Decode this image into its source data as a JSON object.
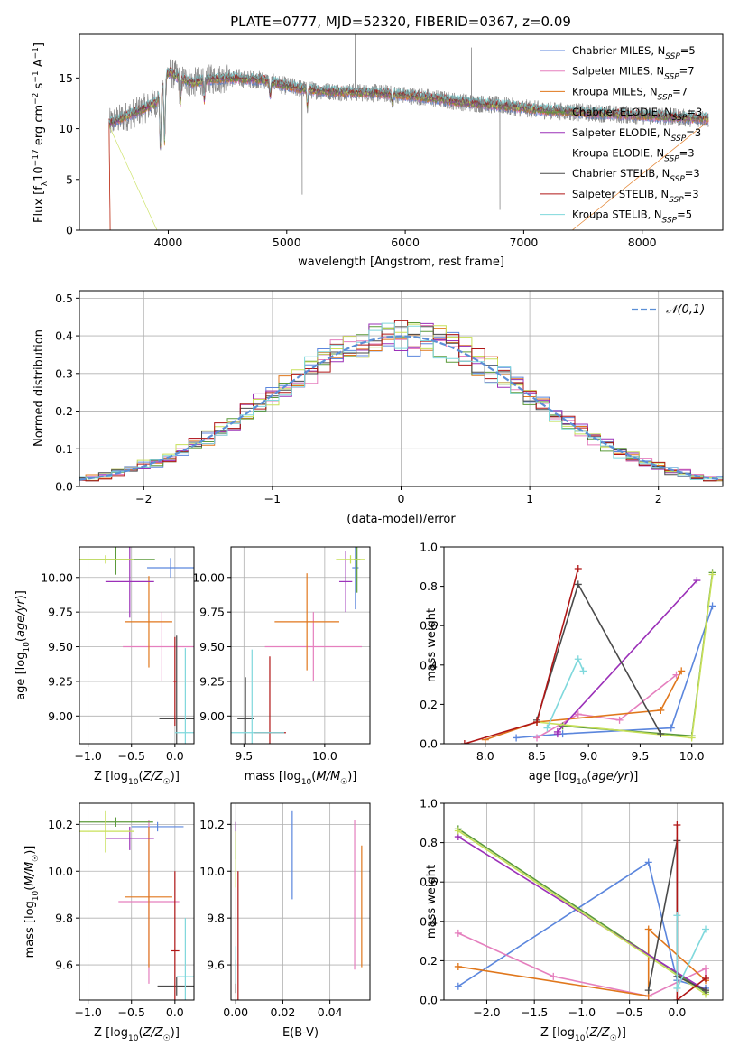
{
  "title": "PLATE=0777, MJD=52320, FIBERID=0367, z=0.09",
  "colors": {
    "Chabrier MILES": "#5b86dd",
    "Salpeter MILES": "#e57fbe",
    "Kroupa MILES": "#e0771c",
    "Chabrier ELODIE": "#5b9a3a",
    "Salpeter ELODIE": "#9b30b8",
    "Kroupa ELODIE": "#c8e05a",
    "Chabrier STELIB": "#4a4a4a",
    "Salpeter STELIB": "#b01616",
    "Kroupa STELIB": "#7fd8dc"
  },
  "chart_data": [
    {
      "id": "spectrum",
      "type": "line",
      "title": "PLATE=0777, MJD=52320, FIBERID=0367, z=0.09",
      "xlabel": "wavelength [Angstrom, rest frame]",
      "ylabel": "Flux [f_λ 10^-17 erg cm^-2 s^-1 A^-1]",
      "xlim": [
        3250,
        8680
      ],
      "ylim": [
        0,
        19.3
      ],
      "xticks": [
        4000,
        5000,
        6000,
        7000,
        8000
      ],
      "yticks": [
        0,
        5,
        10,
        15
      ],
      "legend": "top-right",
      "legend_entries": [
        {
          "series": "Chabrier MILES",
          "text": "Chabrier MILES, N",
          "sub": "SSP",
          "tail": "=5"
        },
        {
          "series": "Salpeter MILES",
          "text": "Salpeter MILES, N",
          "sub": "SSP",
          "tail": "=7"
        },
        {
          "series": "Kroupa MILES",
          "text": "Kroupa MILES, N",
          "sub": "SSP",
          "tail": "=7"
        },
        {
          "series": "Chabrier ELODIE",
          "text": "Chabrier ELODIE, N",
          "sub": "SSP",
          "tail": "=3"
        },
        {
          "series": "Salpeter ELODIE",
          "text": "Salpeter ELODIE, N",
          "sub": "SSP",
          "tail": "=3"
        },
        {
          "series": "Kroupa ELODIE",
          "text": "Kroupa ELODIE, N",
          "sub": "SSP",
          "tail": "=3"
        },
        {
          "series": "Chabrier STELIB",
          "text": "Chabrier STELIB, N",
          "sub": "SSP",
          "tail": "=3"
        },
        {
          "series": "Salpeter STELIB",
          "text": "Salpeter STELIB, N",
          "sub": "SSP",
          "tail": "=3"
        },
        {
          "series": "Kroupa STELIB",
          "text": "Kroupa STELIB, N",
          "sub": "SSP",
          "tail": "=5"
        }
      ],
      "data_color": "#aaaaaa",
      "continuum": {
        "x": [
          3500,
          3600,
          3700,
          3800,
          3900,
          4000,
          4100,
          4200,
          4300,
          4500,
          4800,
          5000,
          5200,
          5500,
          5800,
          6000,
          6300,
          6500,
          6800,
          7000,
          7200,
          7500,
          8000,
          8300,
          8550
        ],
        "y": [
          10.5,
          11.0,
          11.5,
          12.0,
          12.6,
          15.6,
          15.0,
          14.5,
          14.8,
          15.0,
          14.8,
          14.2,
          13.8,
          13.6,
          13.5,
          13.3,
          12.9,
          12.6,
          12.3,
          12.0,
          11.8,
          11.6,
          11.3,
          11.1,
          11.0
        ]
      },
      "absorption_features": [
        {
          "x": 3934,
          "y": 8.2
        },
        {
          "x": 3969,
          "y": 8.7
        },
        {
          "x": 4102,
          "y": 12.5
        },
        {
          "x": 4304,
          "y": 12.8
        },
        {
          "x": 4861,
          "y": 13.2
        },
        {
          "x": 5175,
          "y": 12.3
        },
        {
          "x": 5892,
          "y": 12.4
        }
      ],
      "data_spikes": [
        {
          "x": 5577,
          "y": 19.3
        },
        {
          "x": 6560,
          "y": 18.0
        },
        {
          "x": 5130,
          "y": 3.5
        },
        {
          "x": 6800,
          "y": 2.0
        }
      ]
    },
    {
      "id": "residuals",
      "type": "line",
      "xlabel": "(data-model)/error",
      "ylabel": "Normed distribution",
      "xlim": [
        -2.5,
        2.5
      ],
      "ylim": [
        0,
        0.52
      ],
      "xticks": [
        -2,
        -1,
        0,
        1,
        2
      ],
      "yticks": [
        0.0,
        0.1,
        0.2,
        0.3,
        0.4,
        0.5
      ],
      "grid": true,
      "legend": "top-right",
      "gauss_legend": "𝒩(0,1)",
      "gauss_color": "#5b8fd6",
      "bin_width": 0.1
    },
    {
      "id": "age_Z",
      "type": "scatter",
      "xlabel": "Z [log10(Z/Z☉)]",
      "ylabel": "age [log10(age/yr)]",
      "xlim": [
        -1.1,
        0.22
      ],
      "ylim": [
        8.8,
        10.22
      ],
      "xticks": [
        -1.0,
        -0.5,
        0.0
      ],
      "yticks": [
        9.0,
        9.25,
        9.5,
        9.75,
        10.0
      ],
      "grid": true,
      "points": [
        {
          "series": "Chabrier MILES",
          "x": -0.05,
          "xerr": 0.27,
          "y": 10.07,
          "yerr": 0.07
        },
        {
          "series": "Salpeter MILES",
          "x": -0.15,
          "xerr": 0.45,
          "y": 9.5,
          "yerr": 0.25
        },
        {
          "series": "Kroupa MILES",
          "x": -0.3,
          "xerr": 0.27,
          "y": 9.68,
          "yerr": 0.33
        },
        {
          "series": "Chabrier ELODIE",
          "x": -0.68,
          "xerr": 0.45,
          "y": 10.13,
          "yerr": 0.11
        },
        {
          "series": "Salpeter ELODIE",
          "x": -0.52,
          "xerr": 0.28,
          "y": 9.97,
          "yerr": 0.26
        },
        {
          "series": "Kroupa ELODIE",
          "x": -0.8,
          "xerr": 0.33,
          "y": 10.13,
          "yerr": 0.03
        },
        {
          "series": "Chabrier STELIB",
          "x": 0.02,
          "xerr": 0.2,
          "y": 8.98,
          "yerr": 0.6
        },
        {
          "series": "Salpeter STELIB",
          "x": 0.0,
          "xerr": 0.02,
          "y": 9.25,
          "yerr": 0.32
        },
        {
          "series": "Kroupa STELIB",
          "x": 0.12,
          "xerr": 0.12,
          "y": 8.88,
          "yerr": 0.61
        }
      ]
    },
    {
      "id": "age_mass",
      "type": "scatter",
      "xlabel": "mass [log10(M/M☉)]",
      "ylabel": "",
      "xlim": [
        9.42,
        10.28
      ],
      "ylim": [
        8.8,
        10.22
      ],
      "xticks": [
        9.5,
        10.0
      ],
      "yticks": [
        9.0,
        9.25,
        9.5,
        9.75,
        10.0
      ],
      "grid": true,
      "points": [
        {
          "series": "Chabrier MILES",
          "x": 10.19,
          "xerr": 0.02,
          "y": 10.07,
          "yerr": 0.3
        },
        {
          "series": "Salpeter MILES",
          "x": 9.93,
          "xerr": 0.3,
          "y": 9.5,
          "yerr": 0.25
        },
        {
          "series": "Kroupa MILES",
          "x": 9.89,
          "xerr": 0.2,
          "y": 9.68,
          "yerr": 0.35
        },
        {
          "series": "Chabrier ELODIE",
          "x": 10.2,
          "xerr": 0.02,
          "y": 10.13,
          "yerr": 0.24
        },
        {
          "series": "Salpeter ELODIE",
          "x": 10.13,
          "xerr": 0.04,
          "y": 9.97,
          "yerr": 0.22
        },
        {
          "series": "Kroupa ELODIE",
          "x": 10.16,
          "xerr": 0.09,
          "y": 10.13,
          "yerr": 0.03
        },
        {
          "series": "Chabrier STELIB",
          "x": 9.51,
          "xerr": 0.05,
          "y": 8.98,
          "yerr": 0.3
        },
        {
          "series": "Salpeter STELIB",
          "x": 9.66,
          "xerr": 0.1,
          "y": 8.88,
          "yerr": 0.55
        },
        {
          "series": "Kroupa STELIB",
          "x": 9.55,
          "xerr": 0.2,
          "y": 8.88,
          "yerr": 0.6
        }
      ]
    },
    {
      "id": "weight_age",
      "type": "line",
      "xlabel": "age [log10(age/yr)]",
      "ylabel": "mass weight",
      "xlim": [
        7.6,
        10.3
      ],
      "ylim": [
        0,
        1.0
      ],
      "xticks": [
        8.0,
        8.5,
        9.0,
        9.5,
        10.0
      ],
      "yticks": [
        0.0,
        0.2,
        0.4,
        0.6,
        0.8,
        1.0
      ],
      "grid": false,
      "series": [
        {
          "name": "Chabrier MILES",
          "x": [
            8.3,
            8.75,
            9.8,
            10.2
          ],
          "y": [
            0.03,
            0.05,
            0.08,
            0.7
          ]
        },
        {
          "name": "Salpeter MILES",
          "x": [
            8.5,
            8.9,
            9.3,
            9.85
          ],
          "y": [
            0.03,
            0.15,
            0.12,
            0.35
          ]
        },
        {
          "name": "Kroupa MILES",
          "x": [
            8.0,
            8.5,
            9.7,
            9.9
          ],
          "y": [
            0.02,
            0.11,
            0.17,
            0.37
          ]
        },
        {
          "name": "Chabrier ELODIE",
          "x": [
            8.75,
            10.0,
            10.2
          ],
          "y": [
            0.09,
            0.04,
            0.87
          ]
        },
        {
          "name": "Salpeter ELODIE",
          "x": [
            8.7,
            8.7,
            10.05
          ],
          "y": [
            0.05,
            0.06,
            0.83
          ]
        },
        {
          "name": "Kroupa ELODIE",
          "x": [
            8.5,
            10.0,
            10.2
          ],
          "y": [
            0.11,
            0.03,
            0.86
          ]
        },
        {
          "name": "Chabrier STELIB",
          "x": [
            8.5,
            8.9,
            9.7
          ],
          "y": [
            0.12,
            0.81,
            0.05
          ]
        },
        {
          "name": "Salpeter STELIB",
          "x": [
            7.8,
            8.5,
            8.9
          ],
          "y": [
            0.0,
            0.11,
            0.89
          ]
        },
        {
          "name": "Kroupa STELIB",
          "x": [
            8.6,
            8.9,
            8.95
          ],
          "y": [
            0.08,
            0.43,
            0.37
          ]
        }
      ]
    },
    {
      "id": "mass_Z",
      "type": "scatter",
      "xlabel": "Z [log10(Z/Z☉)]",
      "ylabel": "mass [log10(M/M☉)]",
      "xlim": [
        -1.1,
        0.22
      ],
      "ylim": [
        9.45,
        10.29
      ],
      "xticks": [
        -1.0,
        -0.5,
        0.0
      ],
      "yticks": [
        9.6,
        9.8,
        10.0,
        10.2
      ],
      "grid": true,
      "points": [
        {
          "series": "Chabrier MILES",
          "x": -0.2,
          "xerr": 0.3,
          "y": 10.19,
          "yerr": 0.02
        },
        {
          "series": "Salpeter MILES",
          "x": -0.3,
          "xerr": 0.35,
          "y": 9.87,
          "yerr": 0.35
        },
        {
          "series": "Kroupa MILES",
          "x": -0.3,
          "xerr": 0.27,
          "y": 9.89,
          "yerr": 0.3
        },
        {
          "series": "Chabrier ELODIE",
          "x": -0.68,
          "xerr": 0.43,
          "y": 10.21,
          "yerr": 0.02
        },
        {
          "series": "Salpeter ELODIE",
          "x": -0.52,
          "xerr": 0.28,
          "y": 10.14,
          "yerr": 0.05
        },
        {
          "series": "Kroupa ELODIE",
          "x": -0.8,
          "xerr": 0.33,
          "y": 10.17,
          "yerr": 0.09
        },
        {
          "series": "Chabrier STELIB",
          "x": 0.02,
          "xerr": 0.22,
          "y": 9.51,
          "yerr": 0.04
        },
        {
          "series": "Salpeter STELIB",
          "x": 0.0,
          "xerr": 0.05,
          "y": 9.66,
          "yerr": 0.34
        },
        {
          "series": "Kroupa STELIB",
          "x": 0.12,
          "xerr": 0.1,
          "y": 9.55,
          "yerr": 0.25
        }
      ]
    },
    {
      "id": "mass_ebv",
      "type": "scatter",
      "xlabel": "E(B-V)",
      "ylabel": "",
      "xlim": [
        -0.002,
        0.057
      ],
      "ylim": [
        9.45,
        10.29
      ],
      "xticks": [
        0.0,
        0.02,
        0.04
      ],
      "yticks": [
        9.6,
        9.8,
        10.0,
        10.2
      ],
      "grid": true,
      "points": [
        {
          "series": "Chabrier MILES",
          "x": 0.024,
          "y": 10.07,
          "yerr": 0.19
        },
        {
          "series": "Salpeter MILES",
          "x": 0.0505,
          "y": 9.9,
          "yerr": 0.32
        },
        {
          "series": "Kroupa MILES",
          "x": 0.0535,
          "y": 9.85,
          "yerr": 0.26
        },
        {
          "series": "Chabrier ELODIE",
          "x": 0.0,
          "y": 10.13,
          "yerr": 0.08
        },
        {
          "series": "Salpeter ELODIE",
          "x": 0.0,
          "y": 10.17,
          "yerr": 0.04
        },
        {
          "series": "Kroupa ELODIE",
          "x": 0.0,
          "y": 10.05,
          "yerr": 0.12
        },
        {
          "series": "Chabrier STELIB",
          "x": 0.0,
          "y": 9.55,
          "yerr": 0.07
        },
        {
          "series": "Salpeter STELIB",
          "x": 0.001,
          "y": 9.7,
          "yerr": 0.3
        },
        {
          "series": "Kroupa STELIB",
          "x": 0.0,
          "y": 9.6,
          "yerr": 0.08
        }
      ]
    },
    {
      "id": "weight_Z",
      "type": "line",
      "xlabel": "Z [log10(Z/Z☉)]",
      "ylabel": "mass weight",
      "xlim": [
        -2.45,
        0.48
      ],
      "ylim": [
        0,
        1.0
      ],
      "xticks": [
        -2.0,
        -1.5,
        -1.0,
        -0.5,
        0.0
      ],
      "yticks": [
        0.0,
        0.2,
        0.4,
        0.6,
        0.8,
        1.0
      ],
      "grid": true,
      "series": [
        {
          "name": "Chabrier MILES",
          "x": [
            -2.3,
            -0.3,
            0.0,
            0.3
          ],
          "y": [
            0.07,
            0.7,
            0.1,
            0.06
          ]
        },
        {
          "name": "Salpeter MILES",
          "x": [
            -2.3,
            -1.3,
            -0.3,
            0.3,
            0.3
          ],
          "y": [
            0.34,
            0.12,
            0.02,
            0.16,
            0.11
          ]
        },
        {
          "name": "Kroupa MILES",
          "x": [
            -2.3,
            -0.3,
            -0.3,
            0.3
          ],
          "y": [
            0.17,
            0.02,
            0.36,
            0.1
          ]
        },
        {
          "name": "Chabrier ELODIE",
          "x": [
            -2.3,
            0.3
          ],
          "y": [
            0.87,
            0.04
          ]
        },
        {
          "name": "Salpeter ELODIE",
          "x": [
            -2.3,
            0.3
          ],
          "y": [
            0.83,
            0.05
          ]
        },
        {
          "name": "Kroupa ELODIE",
          "x": [
            -2.3,
            0.3
          ],
          "y": [
            0.86,
            0.03
          ]
        },
        {
          "name": "Chabrier STELIB",
          "x": [
            -0.3,
            0.0,
            0.0,
            0.3
          ],
          "y": [
            0.05,
            0.81,
            0.12,
            0.05
          ]
        },
        {
          "name": "Salpeter STELIB",
          "x": [
            0.0,
            0.0,
            0.3
          ],
          "y": [
            0.89,
            0.0,
            0.11
          ]
        },
        {
          "name": "Kroupa STELIB",
          "x": [
            0.0,
            0.0,
            0.3
          ],
          "y": [
            0.43,
            0.06,
            0.36
          ]
        }
      ]
    }
  ]
}
